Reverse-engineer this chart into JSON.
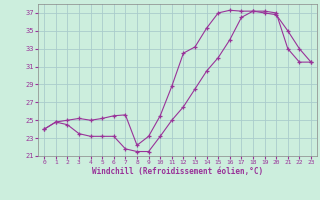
{
  "xlabel": "Windchill (Refroidissement éolien,°C)",
  "xlim": [
    -0.5,
    23.5
  ],
  "ylim": [
    21,
    38
  ],
  "yticks": [
    21,
    23,
    25,
    27,
    29,
    31,
    33,
    35,
    37
  ],
  "xticks": [
    0,
    1,
    2,
    3,
    4,
    5,
    6,
    7,
    8,
    9,
    10,
    11,
    12,
    13,
    14,
    15,
    16,
    17,
    18,
    19,
    20,
    21,
    22,
    23
  ],
  "bg_color": "#cceedd",
  "line_color": "#993399",
  "grid_color": "#aacccc",
  "line1_x": [
    0,
    1,
    2,
    3,
    4,
    5,
    6,
    7,
    8,
    9,
    10,
    11,
    12,
    13,
    14,
    15,
    16,
    17,
    18,
    19,
    20,
    21,
    22,
    23
  ],
  "line1_y": [
    24.0,
    24.8,
    25.0,
    25.2,
    25.0,
    25.2,
    25.5,
    25.6,
    22.2,
    23.2,
    25.5,
    28.8,
    32.5,
    33.2,
    35.3,
    37.0,
    37.3,
    37.2,
    37.2,
    37.0,
    36.8,
    35.0,
    33.0,
    31.5
  ],
  "line2_x": [
    0,
    1,
    2,
    3,
    4,
    5,
    6,
    7,
    8,
    9,
    10,
    11,
    12,
    13,
    14,
    15,
    16,
    17,
    18,
    19,
    20,
    21,
    22,
    23
  ],
  "line2_y": [
    24.0,
    24.8,
    24.5,
    23.5,
    23.2,
    23.2,
    23.2,
    21.8,
    21.5,
    21.5,
    23.2,
    25.0,
    26.5,
    28.5,
    30.5,
    32.0,
    34.0,
    36.5,
    37.2,
    37.2,
    37.0,
    33.0,
    31.5,
    31.5
  ]
}
